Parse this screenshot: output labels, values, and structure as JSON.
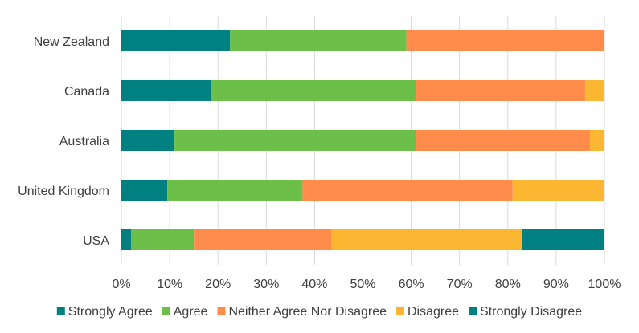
{
  "chart_data": {
    "type": "bar",
    "orientation": "horizontal",
    "stacked": true,
    "percent": true,
    "categories": [
      "New Zealand",
      "Canada",
      "Australia",
      "United Kingdom",
      "USA"
    ],
    "series": [
      {
        "name": "Strongly Agree",
        "color": "#008080",
        "values": [
          22.5,
          18.5,
          11,
          9.5,
          2
        ]
      },
      {
        "name": "Agree",
        "color": "#6cc04a",
        "values": [
          36.5,
          42.5,
          50,
          28,
          13
        ]
      },
      {
        "name": "Neither Agree Nor Disagree",
        "color": "#ff8c4a",
        "values": [
          41,
          35,
          36,
          43.5,
          28.5
        ]
      },
      {
        "name": "Disagree",
        "color": "#fbb731",
        "values": [
          0,
          4,
          3,
          19,
          39.5
        ]
      },
      {
        "name": "Strongly Disagree",
        "color": "#008080",
        "values": [
          0,
          0,
          0,
          0,
          17
        ]
      }
    ],
    "xlim": [
      0,
      100
    ],
    "xticks": [
      "0%",
      "10%",
      "20%",
      "30%",
      "40%",
      "50%",
      "60%",
      "70%",
      "80%",
      "90%",
      "100%"
    ],
    "grid": "vertical",
    "legend_position": "bottom"
  }
}
